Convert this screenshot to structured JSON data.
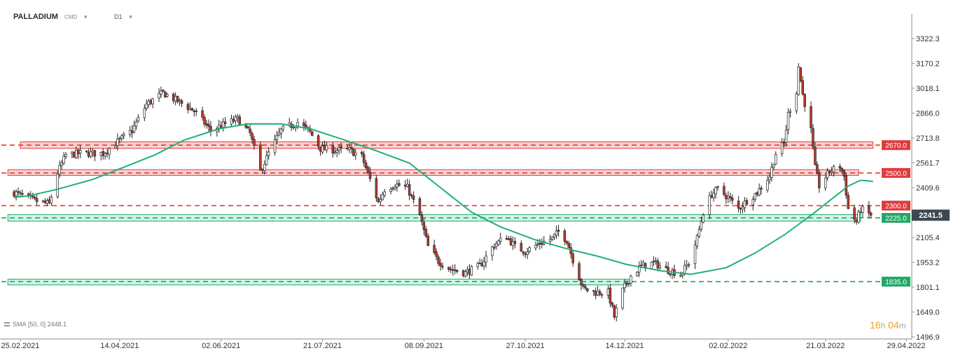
{
  "header": {
    "symbol": "PALLADIUM",
    "type": "CMD",
    "timeframe": "D1"
  },
  "indicator": {
    "label": "SMA",
    "params": "[50, 0]",
    "value": "2448.1"
  },
  "timer": {
    "hours": "16",
    "h_unit": "h",
    "minutes": "04",
    "m_unit": "m"
  },
  "colors": {
    "up": "#ffffff",
    "down": "#c0392b",
    "wick": "#222222",
    "sma": "#20b07a",
    "resistance": "#e03c3c",
    "support": "#1fa866",
    "price_tag": "#3d4852"
  },
  "chart_data": {
    "type": "candlestick",
    "title": "PALLADIUM",
    "instrument_type": "CMD",
    "timeframe": "D1",
    "grid": false,
    "y_axis_side": "right",
    "ylim": [
      1430,
      3520
    ],
    "y_ticks": [
      "3322.3",
      "3170.2",
      "3018.1",
      "2866.0",
      "2713.8",
      "2561.7",
      "2409.6",
      "2105.4",
      "1953.2",
      "1801.1",
      "1649.0",
      "1496.9"
    ],
    "x_ticks": [
      "25.02.2021",
      "14.04.2021",
      "02.06.2021",
      "21.07.2021",
      "08.09.2021",
      "27.10.2021",
      "14.12.2021",
      "02.02.2022",
      "21.03.2022",
      "29.04.2022"
    ],
    "current_price": "2241.5",
    "levels": [
      {
        "value": 2670.0,
        "label": "2670.0",
        "kind": "resistance"
      },
      {
        "value": 2500.0,
        "label": "2500.0",
        "kind": "resistance"
      },
      {
        "value": 2300.0,
        "label": "2300.0",
        "kind": "resistance"
      },
      {
        "value": 2225.0,
        "label": "2225.0",
        "kind": "support"
      },
      {
        "value": 1835.0,
        "label": "1835.0",
        "kind": "support"
      }
    ],
    "zones": [
      {
        "kind": "resistance",
        "range": [
          2650,
          2690
        ],
        "span": [
          "25.02.2021",
          "13.04.2022"
        ]
      },
      {
        "kind": "resistance",
        "range": [
          2485,
          2520
        ],
        "span": [
          "19.02.2021",
          "06.04.2022"
        ]
      },
      {
        "kind": "support",
        "range": [
          2205,
          2245
        ],
        "span": [
          "19.02.2021",
          "07.04.2022"
        ]
      },
      {
        "kind": "support",
        "range": [
          1815,
          1850
        ],
        "span": [
          "19.02.2021",
          "16.12.2021"
        ]
      }
    ],
    "price_anchors": [
      [
        "22.02.2021",
        2380
      ],
      [
        "04.03.2021",
        2330
      ],
      [
        "11.03.2021",
        2310
      ],
      [
        "15.03.2021",
        2500
      ],
      [
        "19.03.2021",
        2610
      ],
      [
        "26.03.2021",
        2620
      ],
      [
        "06.04.2021",
        2620
      ],
      [
        "12.04.2021",
        2680
      ],
      [
        "20.04.2021",
        2760
      ],
      [
        "27.04.2021",
        2920
      ],
      [
        "05.05.2021",
        2990
      ],
      [
        "12.05.2021",
        2940
      ],
      [
        "20.05.2021",
        2880
      ],
      [
        "28.05.2021",
        2760
      ],
      [
        "04.06.2021",
        2800
      ],
      [
        "10.06.2021",
        2830
      ],
      [
        "16.06.2021",
        2740
      ],
      [
        "21.06.2021",
        2510
      ],
      [
        "25.06.2021",
        2620
      ],
      [
        "01.07.2021",
        2760
      ],
      [
        "09.07.2021",
        2810
      ],
      [
        "15.07.2021",
        2750
      ],
      [
        "20.07.2021",
        2650
      ],
      [
        "27.07.2021",
        2640
      ],
      [
        "03.08.2021",
        2640
      ],
      [
        "09.08.2021",
        2600
      ],
      [
        "13.08.2021",
        2460
      ],
      [
        "17.08.2021",
        2320
      ],
      [
        "20.08.2021",
        2400
      ],
      [
        "25.08.2021",
        2430
      ],
      [
        "31.08.2021",
        2410
      ],
      [
        "06.09.2021",
        2240
      ],
      [
        "10.09.2021",
        2050
      ],
      [
        "15.09.2021",
        1960
      ],
      [
        "21.09.2021",
        1910
      ],
      [
        "28.09.2021",
        1890
      ],
      [
        "05.10.2021",
        1930
      ],
      [
        "12.10.2021",
        2060
      ],
      [
        "18.10.2021",
        2110
      ],
      [
        "22.10.2021",
        2050
      ],
      [
        "27.10.2021",
        2020
      ],
      [
        "03.11.2021",
        2070
      ],
      [
        "09.11.2021",
        2100
      ],
      [
        "12.11.2021",
        2140
      ],
      [
        "16.11.2021",
        2090
      ],
      [
        "19.11.2021",
        1970
      ],
      [
        "24.11.2021",
        1790
      ],
      [
        "30.11.2021",
        1770
      ],
      [
        "06.12.2021",
        1770
      ],
      [
        "09.12.2021",
        1620
      ],
      [
        "13.12.2021",
        1780
      ],
      [
        "17.12.2021",
        1870
      ],
      [
        "22.12.2021",
        1930
      ],
      [
        "28.12.2021",
        1950
      ],
      [
        "03.01.2022",
        1910
      ],
      [
        "10.01.2022",
        1880
      ],
      [
        "14.01.2022",
        1950
      ],
      [
        "18.01.2022",
        2100
      ],
      [
        "21.01.2022",
        2260
      ],
      [
        "25.01.2022",
        2370
      ],
      [
        "28.01.2022",
        2400
      ],
      [
        "02.02.2022",
        2350
      ],
      [
        "07.02.2022",
        2280
      ],
      [
        "11.02.2022",
        2330
      ],
      [
        "16.02.2022",
        2380
      ],
      [
        "22.02.2022",
        2480
      ],
      [
        "25.02.2022",
        2620
      ],
      [
        "01.03.2022",
        2680
      ],
      [
        "03.03.2022",
        2860
      ],
      [
        "07.03.2022",
        3000
      ],
      [
        "08.03.2022",
        3150
      ],
      [
        "10.03.2022",
        2980
      ],
      [
        "14.03.2022",
        2760
      ],
      [
        "16.03.2022",
        2530
      ],
      [
        "18.03.2022",
        2420
      ],
      [
        "23.03.2022",
        2510
      ],
      [
        "28.03.2022",
        2540
      ],
      [
        "30.03.2022",
        2480
      ],
      [
        "01.04.2022",
        2280
      ],
      [
        "05.04.2022",
        2200
      ],
      [
        "07.04.2022",
        2280
      ],
      [
        "12.04.2022",
        2241.5
      ]
    ],
    "sma": {
      "period": 50,
      "shift": 0,
      "last_value": 2448.1,
      "points": [
        [
          "22.02.2021",
          2350
        ],
        [
          "01.03.2021",
          2360
        ],
        [
          "15.03.2021",
          2400
        ],
        [
          "01.04.2021",
          2460
        ],
        [
          "15.04.2021",
          2530
        ],
        [
          "01.05.2021",
          2610
        ],
        [
          "15.05.2021",
          2700
        ],
        [
          "01.06.2021",
          2770
        ],
        [
          "15.06.2021",
          2800
        ],
        [
          "01.07.2021",
          2800
        ],
        [
          "15.07.2021",
          2770
        ],
        [
          "01.08.2021",
          2700
        ],
        [
          "15.08.2021",
          2640
        ],
        [
          "01.09.2021",
          2560
        ],
        [
          "15.09.2021",
          2420
        ],
        [
          "01.10.2021",
          2260
        ],
        [
          "15.10.2021",
          2170
        ],
        [
          "01.11.2021",
          2090
        ],
        [
          "15.11.2021",
          2040
        ],
        [
          "01.12.2021",
          1990
        ],
        [
          "15.12.2021",
          1940
        ],
        [
          "01.01.2022",
          1900
        ],
        [
          "15.01.2022",
          1880
        ],
        [
          "01.02.2022",
          1920
        ],
        [
          "15.02.2022",
          2010
        ],
        [
          "01.03.2022",
          2120
        ],
        [
          "15.03.2022",
          2250
        ],
        [
          "01.04.2022",
          2420
        ],
        [
          "07.04.2022",
          2455
        ],
        [
          "13.04.2022",
          2448.1
        ]
      ]
    }
  }
}
